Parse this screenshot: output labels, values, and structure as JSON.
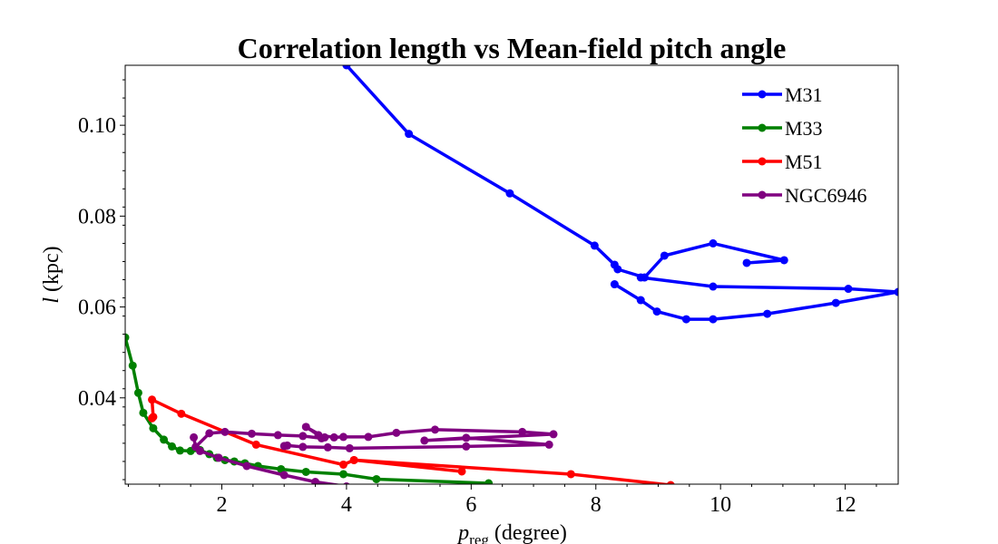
{
  "chart_data": {
    "type": "line",
    "title": "Correlation length vs Mean-field pitch angle",
    "xlabel_main": "p",
    "xlabel_sub": "reg",
    "xlabel_unit": "(degree)",
    "ylabel_main": "l",
    "ylabel_unit": "(kpc)",
    "xlim": [
      0.45,
      12.85
    ],
    "ylim": [
      0.021,
      0.1132
    ],
    "xticks": [
      2,
      4,
      6,
      8,
      10,
      12
    ],
    "xtick_labels": [
      "2",
      "4",
      "6",
      "8",
      "10",
      "12"
    ],
    "yticks": [
      0.04,
      0.06,
      0.08,
      0.1
    ],
    "ytick_labels": [
      "0.04",
      "0.06",
      "0.08",
      "0.10"
    ],
    "legend_position": "top-right",
    "series": [
      {
        "name": "M31",
        "color": "#0000ff",
        "x": [
          4.0,
          5.0,
          6.62,
          7.98,
          8.3,
          8.35,
          8.78,
          9.1,
          9.88,
          11.02,
          10.42
        ],
        "y": [
          0.1132,
          0.0981,
          0.085,
          0.0735,
          0.0693,
          0.0683,
          0.0665,
          0.0713,
          0.074,
          0.0703,
          0.0697
        ],
        "x2": [
          8.3,
          8.72,
          8.98,
          9.45,
          9.88,
          10.75,
          11.85,
          12.85,
          12.05,
          9.88,
          8.72
        ],
        "y2": [
          0.065,
          0.0615,
          0.059,
          0.0573,
          0.0573,
          0.0585,
          0.0609,
          0.0633,
          0.064,
          0.0645,
          0.0665
        ]
      },
      {
        "name": "M33",
        "color": "#008000",
        "x": [
          0.45,
          0.57,
          0.66,
          0.74,
          0.9,
          1.07,
          1.2,
          1.33,
          1.5,
          1.65,
          1.8,
          1.92,
          2.05,
          2.2,
          2.37,
          2.58,
          2.95,
          3.35,
          3.95,
          4.48,
          6.28
        ],
        "y": [
          0.0533,
          0.0471,
          0.0411,
          0.0367,
          0.0333,
          0.0308,
          0.0293,
          0.0284,
          0.0283,
          0.0285,
          0.0276,
          0.0268,
          0.0263,
          0.026,
          0.0256,
          0.025,
          0.0243,
          0.0237,
          0.0232,
          0.0221,
          0.0212
        ]
      },
      {
        "name": "M51",
        "color": "#ff0000",
        "x": [
          0.88,
          0.9,
          0.88,
          1.35,
          2.55,
          3.95,
          4.12,
          5.85,
          4.12,
          7.6,
          9.2
        ],
        "y": [
          0.0355,
          0.0358,
          0.0396,
          0.0365,
          0.0297,
          0.0253,
          0.0263,
          0.0238,
          0.0263,
          0.0232,
          0.0208
        ]
      },
      {
        "name": "NGC6946",
        "color": "#800080",
        "x": [
          1.55,
          1.58,
          1.8,
          2.05,
          2.48,
          2.9,
          3.3,
          3.6,
          3.65,
          3.35,
          3.55,
          3.8,
          3.95,
          4.35,
          4.8,
          5.42,
          6.82,
          7.32,
          5.25,
          5.92,
          7.25,
          5.92,
          4.05,
          3.7,
          3.3,
          3.05,
          3.0
        ],
        "y": [
          0.0313,
          0.0292,
          0.0322,
          0.0325,
          0.0321,
          0.0318,
          0.0316,
          0.0311,
          0.0313,
          0.0336,
          0.0318,
          0.0313,
          0.0314,
          0.0314,
          0.0323,
          0.033,
          0.0325,
          0.032,
          0.0306,
          0.0312,
          0.0297,
          0.0293,
          0.0289,
          0.0291,
          0.0292,
          0.0295,
          0.0294
        ],
        "x2": [
          1.65,
          1.95,
          2.4,
          3.0,
          3.5,
          4.0
        ],
        "y2": [
          0.0283,
          0.0268,
          0.025,
          0.023,
          0.0215,
          0.0205
        ]
      }
    ]
  }
}
